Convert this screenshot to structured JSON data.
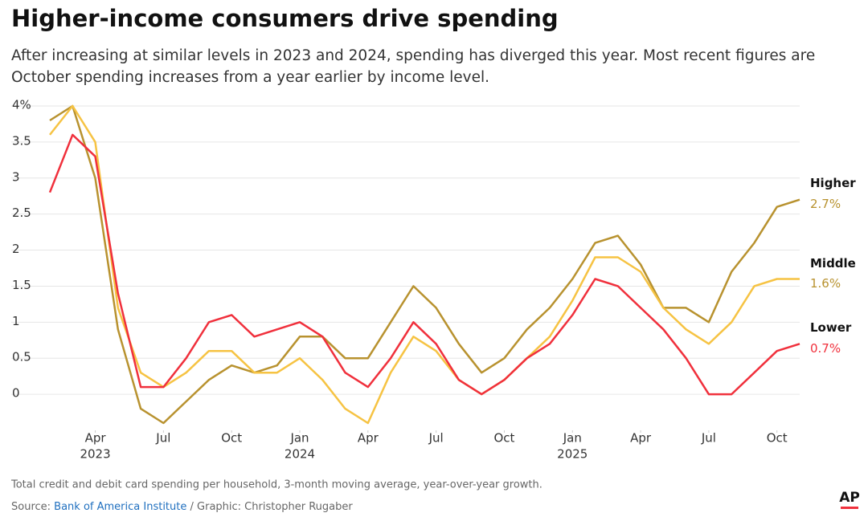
{
  "chart_data": {
    "type": "line",
    "title": "Higher-income consumers drive spending",
    "subtitle": [
      "After increasing at similar levels in 2023 and 2024, spending has diverged this year. Most recent figures are",
      "October spending increases from a year earlier by income level."
    ],
    "x": [
      "2023-02",
      "2023-03",
      "2023-04",
      "2023-05",
      "2023-06",
      "2023-07",
      "2023-08",
      "2023-09",
      "2023-10",
      "2023-11",
      "2023-12",
      "2024-01",
      "2024-02",
      "2024-03",
      "2024-04",
      "2024-05",
      "2024-06",
      "2024-07",
      "2024-08",
      "2024-09",
      "2024-10",
      "2024-11",
      "2024-12",
      "2025-01",
      "2025-02",
      "2025-03",
      "2025-04",
      "2025-05",
      "2025-06",
      "2025-07",
      "2025-08",
      "2025-09",
      "2025-10",
      "2025-11"
    ],
    "series": [
      {
        "name": "Higher",
        "color": "#b8922f",
        "end_label": "2.7%",
        "values": [
          3.8,
          4.0,
          3.0,
          0.9,
          -0.2,
          -0.4,
          -0.1,
          0.2,
          0.4,
          0.3,
          0.4,
          0.8,
          0.8,
          0.5,
          0.5,
          1.0,
          1.5,
          1.2,
          0.7,
          0.3,
          0.5,
          0.9,
          1.2,
          1.6,
          2.1,
          2.2,
          1.8,
          1.2,
          1.2,
          1.0,
          1.7,
          2.1,
          2.6,
          2.7
        ]
      },
      {
        "name": "Middle",
        "color": "#f6c343",
        "end_label": "1.6%",
        "label_color": "#b8922f",
        "values": [
          3.6,
          4.0,
          3.5,
          1.2,
          0.3,
          0.1,
          0.3,
          0.6,
          0.6,
          0.3,
          0.3,
          0.5,
          0.2,
          -0.2,
          -0.4,
          0.3,
          0.8,
          0.6,
          0.2,
          0.0,
          0.2,
          0.5,
          0.8,
          1.3,
          1.9,
          1.9,
          1.7,
          1.2,
          0.9,
          0.7,
          1.0,
          1.5,
          1.6,
          1.6
        ]
      },
      {
        "name": "Lower",
        "color": "#f0303c",
        "end_label": "0.7%",
        "values": [
          2.8,
          3.6,
          3.3,
          1.4,
          0.1,
          0.1,
          0.5,
          1.0,
          1.1,
          0.8,
          0.9,
          1.0,
          0.8,
          0.3,
          0.1,
          0.5,
          1.0,
          0.7,
          0.2,
          0.0,
          0.2,
          0.5,
          0.7,
          1.1,
          1.6,
          1.5,
          1.2,
          0.9,
          0.5,
          0.0,
          0.0,
          0.3,
          0.6,
          0.7
        ]
      }
    ],
    "ylim": [
      -0.5,
      4
    ],
    "yticks": [
      {
        "value": 4,
        "label": "4%"
      },
      3.5,
      3,
      2.5,
      2,
      1.5,
      1,
      0.5,
      0
    ],
    "xticks": [
      {
        "value": "2023-04",
        "label": "Apr",
        "year": "2023"
      },
      {
        "value": "2023-07",
        "label": "Jul"
      },
      {
        "value": "2023-10",
        "label": "Oct"
      },
      {
        "value": "2024-01",
        "label": "Jan",
        "year": "2024"
      },
      {
        "value": "2024-04",
        "label": "Apr"
      },
      {
        "value": "2024-07",
        "label": "Jul"
      },
      {
        "value": "2024-10",
        "label": "Oct"
      },
      {
        "value": "2025-01",
        "label": "Jan",
        "year": "2025"
      },
      {
        "value": "2025-04",
        "label": "Apr"
      },
      {
        "value": "2025-07",
        "label": "Jul"
      },
      {
        "value": "2025-10",
        "label": "Oct"
      }
    ],
    "grid": true,
    "note": "Total credit and debit card spending per household, 3-month moving average, year-over-year growth.",
    "source_label": "Source:",
    "source": "Bank of America Institute",
    "credit": "/ Graphic: Christopher Rugaber",
    "logo": "AP"
  }
}
